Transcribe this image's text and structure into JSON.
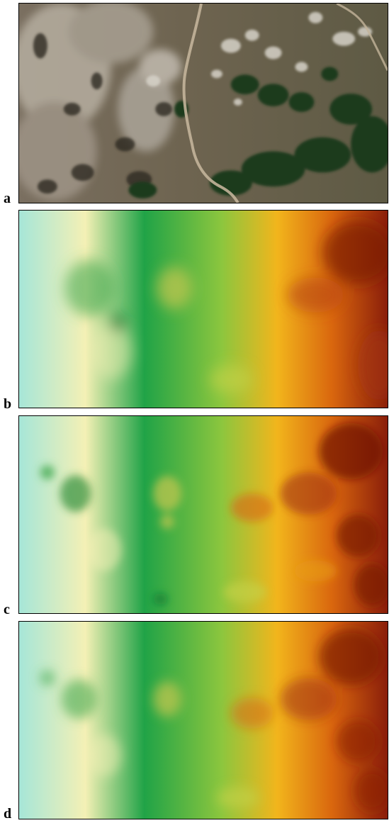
{
  "panels": [
    {
      "id": "a",
      "label": "a",
      "kind": "aerial-photo"
    },
    {
      "id": "b",
      "label": "b",
      "kind": "elevation-map"
    },
    {
      "id": "c",
      "label": "c",
      "kind": "elevation-map"
    },
    {
      "id": "d",
      "label": "d",
      "kind": "elevation-map"
    }
  ],
  "colors": {
    "elevation_ramp": [
      "#a6e6d8",
      "#f7f2b8",
      "#19a043",
      "#7fc43c",
      "#f3b21a",
      "#d9660e",
      "#8a1e0a"
    ],
    "rock": "#b9b2a6",
    "grass": "#6f6650",
    "tree": "#1f3a1e",
    "road": "#c3b49a"
  }
}
